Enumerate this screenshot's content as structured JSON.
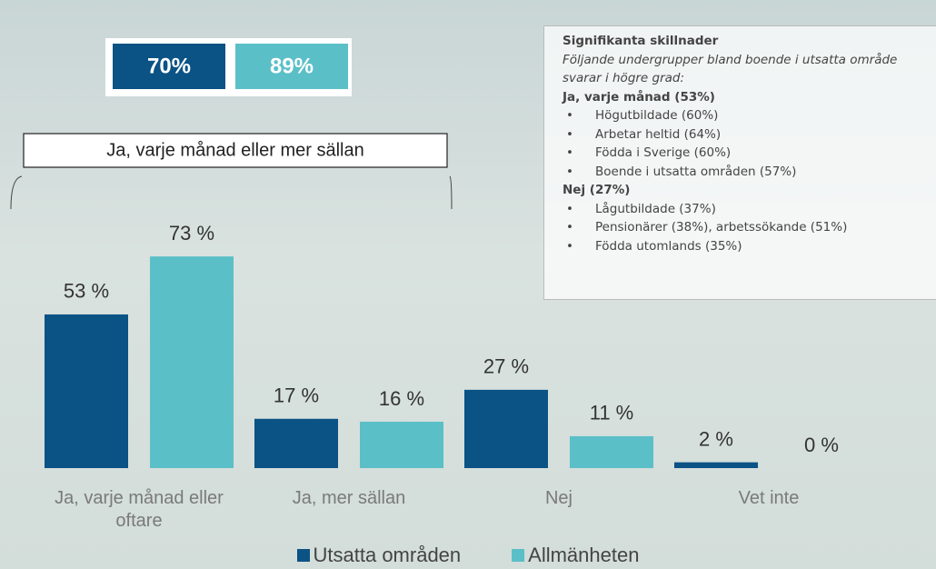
{
  "chart_data": {
    "type": "bar",
    "categories": [
      "Ja, varje månad eller oftare",
      "Ja, mer sällan",
      "Nej",
      "Vet inte"
    ],
    "series": [
      {
        "name": "Utsatta områden",
        "color": "#0b5285",
        "values": [
          53,
          17,
          27,
          2
        ],
        "value_labels": [
          "53 %",
          "17 %",
          "27 %",
          "2 %"
        ]
      },
      {
        "name": "Allmänheten",
        "color": "#5bbfc8",
        "values": [
          73,
          16,
          11,
          0
        ],
        "value_labels": [
          "73 %",
          "16 %",
          "11 %",
          "0 %"
        ]
      }
    ],
    "totals": {
      "values": [
        70,
        89
      ],
      "value_labels": [
        "70%",
        "89%"
      ]
    },
    "bracket_label": "Ja, varje månad eller mer sällan",
    "significance": {
      "title": "Signifikanta skillnader",
      "intro": "Följande undergrupper bland boende i utsatta område svarar i högre grad:",
      "groups": [
        {
          "heading": "Ja, varje månad (53%)",
          "items": [
            "Högutbildade (60%)",
            "Arbetar heltid (64%)",
            "Födda i Sverige (60%)",
            "Boende i utsatta områden (57%)"
          ]
        },
        {
          "heading": "Nej (27%)",
          "items": [
            "Lågutbildade (37%)",
            "Pensionärer (38%), arbetssökande (51%)",
            "Födda utomlands (35%)"
          ]
        }
      ]
    },
    "legend": "bottom"
  }
}
